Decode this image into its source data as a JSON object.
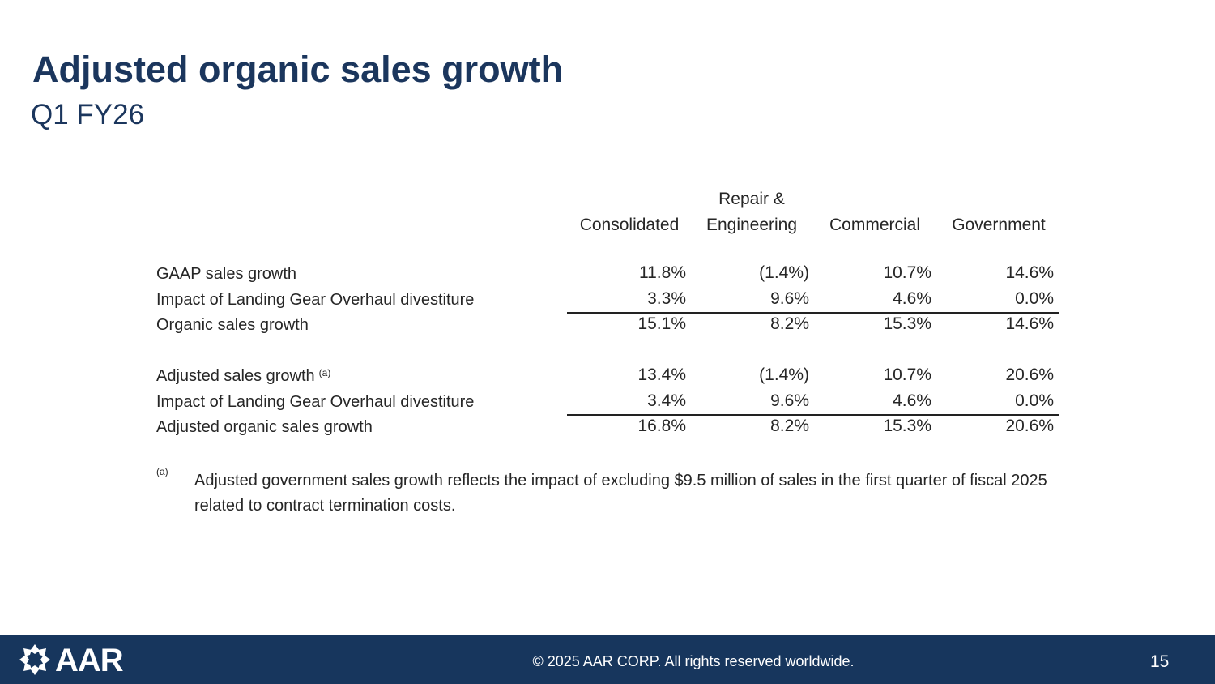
{
  "header": {
    "title": "Adjusted organic sales growth",
    "subtitle": "Q1 FY26"
  },
  "table": {
    "columns": [
      "Consolidated",
      "Repair & Engineering",
      "Commercial",
      "Government"
    ],
    "groups": [
      [
        {
          "label": "GAAP sales growth",
          "values": [
            "11.8%",
            "(1.4%)",
            "10.7%",
            "14.6%"
          ]
        },
        {
          "label": "Impact of Landing Gear Overhaul divestiture",
          "values": [
            "3.3%",
            "9.6%",
            "4.6%",
            "0.0%"
          ]
        },
        {
          "label": "Organic sales growth",
          "values": [
            "15.1%",
            "8.2%",
            "15.3%",
            "14.6%"
          ]
        }
      ],
      [
        {
          "label": "Adjusted sales growth",
          "note_ref": "(a)",
          "values": [
            "13.4%",
            "(1.4%)",
            "10.7%",
            "20.6%"
          ]
        },
        {
          "label": "Impact of Landing Gear Overhaul divestiture",
          "values": [
            "3.4%",
            "9.6%",
            "4.6%",
            "0.0%"
          ]
        },
        {
          "label": "Adjusted organic sales growth",
          "values": [
            "16.8%",
            "8.2%",
            "15.3%",
            "20.6%"
          ]
        }
      ]
    ]
  },
  "footnote": {
    "marker": "(a)",
    "text": "Adjusted government sales growth reflects the impact of excluding $9.5 million of sales in the first quarter of fiscal 2025 related to contract termination costs."
  },
  "footer": {
    "logo": "AAR",
    "copyright": "© 2025 AAR CORP. All rights reserved worldwide.",
    "page": "15"
  }
}
